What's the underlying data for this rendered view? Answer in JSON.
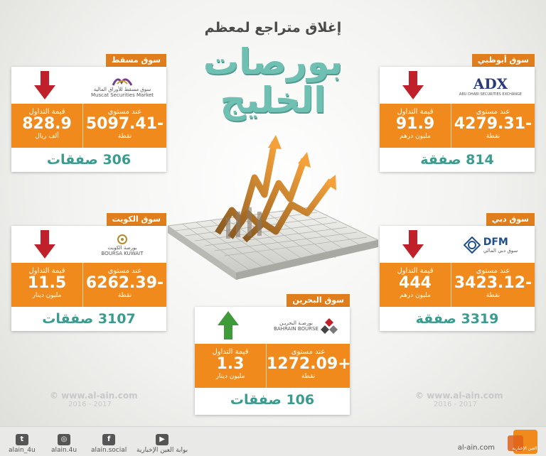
{
  "header": {
    "subtitle": "إغلاق متراجع لمعظم",
    "title_line1": "بورصات",
    "title_line2": "الخليج"
  },
  "labels": {
    "level": "عند مستوى",
    "points": "نقطة",
    "value": "قيمة التداول"
  },
  "markets": {
    "muscat": {
      "name": "سوق مسقط",
      "logo_ar": "سوق مسقط للأوراق المالية",
      "logo_en": "Muscat Securities Market",
      "level": "5097.41-",
      "value": "828.9",
      "unit": "ألف ريال",
      "deals": "306 صفقات",
      "trend": "down"
    },
    "abudhabi": {
      "name": "سوق أبوظبي",
      "logo_en": "ADX",
      "logo_sub": "ABU DHABI SECURITIES EXCHANGE",
      "level": "4279.31-",
      "value": "91.9",
      "unit": "مليون درهم",
      "deals": "814 صفقة",
      "trend": "down"
    },
    "kuwait": {
      "name": "سوق الكويت",
      "logo_ar": "بورصة الكويت",
      "logo_en": "BOURSA KUWAIT",
      "level": "6262.39-",
      "value": "11.5",
      "unit": "مليون دينار",
      "deals": "3107 صفقات",
      "trend": "down"
    },
    "dubai": {
      "name": "سوق دبي",
      "logo_en": "DFM",
      "logo_ar": "سوق دبي المالي",
      "level": "3423.12-",
      "value": "444",
      "unit": "مليون درهم",
      "deals": "3319 صفقة",
      "trend": "down"
    },
    "bahrain": {
      "name": "سوق البحرين",
      "logo_ar": "بورصـة البحريـن",
      "logo_en": "BAHRAIN BOURSE",
      "level": "1272.09+",
      "value": "1.3",
      "unit": "مليون دينار",
      "deals": "106 صفقات",
      "trend": "up"
    }
  },
  "watermark": {
    "url": "www.al-ain.com",
    "years": "2016 - 2017"
  },
  "footer": {
    "twitter": "alain_4u",
    "instagram": "alain.4u",
    "facebook": "alain.social",
    "youtube": "بوابة العين الإخبارية",
    "site": "al-ain.com",
    "brand": "العين الإخبارية"
  },
  "colors": {
    "orange": "#f08a1c",
    "teal": "#3a9c8e",
    "down_arrow": "#c0202a",
    "up_arrow": "#3f9a3a"
  }
}
